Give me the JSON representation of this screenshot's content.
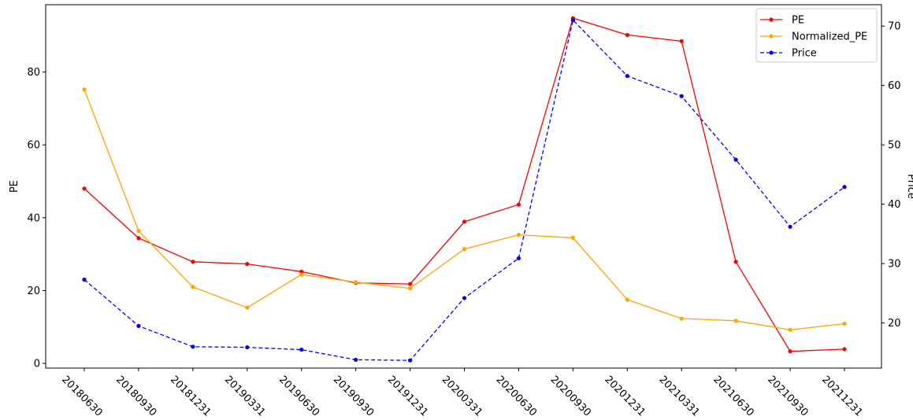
{
  "chart_data": {
    "type": "line",
    "title": "",
    "xlabel": "",
    "ylabel": "PE",
    "y2label": "Price",
    "ylim": [
      -1.3,
      98.5
    ],
    "y2lim": [
      12.4,
      73.6
    ],
    "yticks": [
      0,
      20,
      40,
      60,
      80
    ],
    "y2ticks": [
      20,
      30,
      40,
      50,
      60,
      70
    ],
    "grid": false,
    "legend_position": "top-right",
    "categories": [
      "20180630",
      "20180930",
      "20181231",
      "20190331",
      "20190630",
      "20190930",
      "20191231",
      "20200331",
      "20200630",
      "20200930",
      "20201231",
      "20210331",
      "20210630",
      "20210930",
      "20211231"
    ],
    "series": [
      {
        "name": "PE",
        "axis": "left",
        "color": "#ff0000",
        "style": "solid",
        "values": [
          48.0,
          34.4,
          27.9,
          27.3,
          25.2,
          22.1,
          21.8,
          38.9,
          43.6,
          94.8,
          90.2,
          88.5,
          27.9,
          3.3,
          3.9
        ]
      },
      {
        "name": "Normalized_PE",
        "axis": "left",
        "color": "#ffa500",
        "style": "solid",
        "values": [
          75.2,
          36.4,
          21.0,
          15.3,
          24.4,
          22.3,
          20.6,
          31.4,
          35.3,
          34.5,
          17.5,
          12.3,
          11.7,
          9.2,
          10.9
        ]
      },
      {
        "name": "Price",
        "axis": "right",
        "color": "#0000ff",
        "style": "dashed",
        "values": [
          27.3,
          19.5,
          16.0,
          15.9,
          15.5,
          13.8,
          13.7,
          24.2,
          30.9,
          71.0,
          61.6,
          58.2,
          47.5,
          36.2,
          42.9
        ]
      }
    ]
  }
}
